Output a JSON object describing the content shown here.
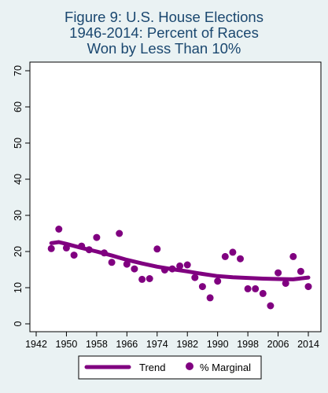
{
  "chart_data": {
    "type": "scatter",
    "title_lines": [
      "Figure 9: U.S. House Elections",
      "1946-2014: Percent of Races",
      "Won by Less Than 10%"
    ],
    "xlabel": "",
    "ylabel": "",
    "xlim": [
      1942,
      2014
    ],
    "ylim": [
      0,
      70
    ],
    "x_ticks": [
      1942,
      1950,
      1958,
      1966,
      1974,
      1982,
      1990,
      1998,
      2006,
      2014
    ],
    "y_ticks": [
      0,
      10,
      20,
      30,
      40,
      50,
      60,
      70
    ],
    "grid": false,
    "legend_position": "bottom",
    "series": [
      {
        "name": "% Marginal",
        "kind": "scatter",
        "color": "#800080",
        "x": [
          1946,
          1948,
          1950,
          1952,
          1954,
          1956,
          1958,
          1960,
          1962,
          1964,
          1966,
          1968,
          1970,
          1972,
          1974,
          1976,
          1978,
          1980,
          1982,
          1984,
          1986,
          1988,
          1990,
          1992,
          1994,
          1996,
          1998,
          2000,
          2002,
          2004,
          2006,
          2008,
          2010,
          2012,
          2014
        ],
        "y": [
          20.8,
          26.2,
          21.0,
          19.0,
          21.5,
          20.5,
          23.9,
          19.6,
          17.0,
          25.0,
          16.5,
          15.2,
          12.3,
          12.5,
          20.7,
          14.9,
          15.2,
          16.0,
          16.3,
          12.8,
          10.3,
          7.2,
          11.8,
          18.6,
          19.8,
          18.0,
          9.7,
          9.7,
          8.4,
          5.0,
          14.1,
          11.2,
          18.6,
          14.5,
          10.3
        ]
      },
      {
        "name": "Trend",
        "kind": "line",
        "color": "#800080",
        "x": [
          1946,
          1948,
          1950,
          1954,
          1958,
          1962,
          1966,
          1970,
          1974,
          1978,
          1982,
          1986,
          1990,
          1994,
          1998,
          2002,
          2006,
          2010,
          2014
        ],
        "y": [
          22.3,
          22.6,
          22.1,
          21.0,
          20.0,
          18.9,
          17.7,
          16.7,
          15.8,
          15.1,
          14.5,
          13.8,
          13.2,
          12.9,
          12.7,
          12.5,
          12.4,
          12.3,
          12.8
        ]
      }
    ]
  },
  "legend": {
    "trend_label": "Trend",
    "marginal_label": "% Marginal"
  },
  "colors": {
    "background": "#eaf2f3",
    "plot_background": "#ffffff",
    "title": "#1a476f",
    "series": "#800080"
  }
}
